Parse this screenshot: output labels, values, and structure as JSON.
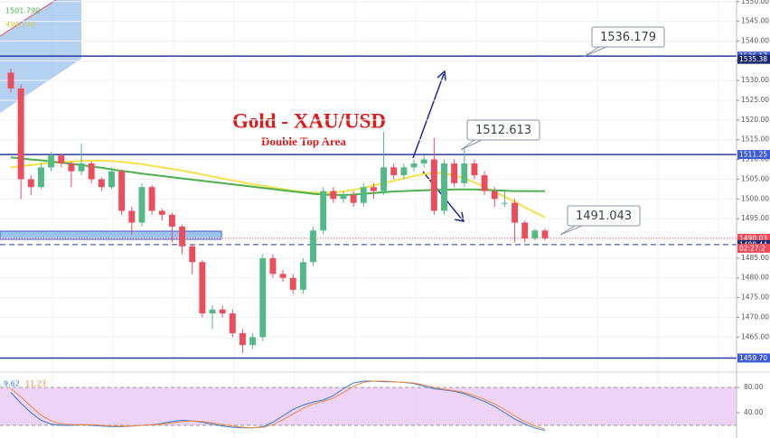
{
  "chart_data": {
    "type": "candlestick",
    "title": "Gold - XAU/USD",
    "subtitle": "Double Top Area",
    "overlay_labels": [
      "1501.790",
      "494.750"
    ],
    "up_color": "#53b987",
    "down_color": "#eb4d5c",
    "open": [
      1532,
      1528,
      1505,
      1503,
      1508,
      1511,
      1509,
      1507,
      1509,
      1505,
      1503,
      1507,
      1497,
      1494,
      1503,
      1497,
      1496,
      1493,
      1488,
      1484,
      1471,
      1472,
      1471,
      1466,
      1463,
      1465,
      1485,
      1481,
      1480,
      1477,
      1484,
      1492,
      1502,
      1500,
      1501,
      1499,
      1503,
      1502,
      1508,
      1506,
      1508,
      1509,
      1510,
      1497,
      1509,
      1504,
      1509,
      1506,
      1502,
      1499,
      1499,
      1494,
      1490,
      1492
    ],
    "high": [
      1533,
      1529,
      1506,
      1509,
      1512,
      1511.5,
      1509.5,
      1514,
      1509.5,
      1505.5,
      1508,
      1507.5,
      1498,
      1504,
      1503.5,
      1497.5,
      1496.5,
      1493.5,
      1488.5,
      1484.5,
      1473,
      1473,
      1472,
      1467,
      1466,
      1486,
      1486,
      1482,
      1481,
      1485,
      1493,
      1503,
      1503,
      1502,
      1502,
      1504,
      1504,
      1517,
      1509,
      1509,
      1510,
      1511,
      1515.5,
      1510,
      1510,
      1512.6,
      1510,
      1507,
      1503,
      1502,
      1500,
      1494.5,
      1492.5,
      1492.5
    ],
    "low": [
      1527,
      1500,
      1501,
      1502.5,
      1507,
      1508,
      1503,
      1506,
      1504,
      1502,
      1502.5,
      1496,
      1491,
      1493,
      1496,
      1494.5,
      1489,
      1486,
      1481,
      1470,
      1467,
      1470,
      1465,
      1461,
      1462,
      1464,
      1480,
      1479,
      1476,
      1476,
      1483,
      1491,
      1499,
      1499,
      1498,
      1498,
      1500,
      1501,
      1505,
      1505,
      1507,
      1508,
      1496,
      1496,
      1503,
      1503,
      1505,
      1501,
      1498,
      1498,
      1489,
      1489,
      1489.5,
      1489.5
    ],
    "close": [
      1528,
      1505,
      1503,
      1508,
      1511,
      1509,
      1507,
      1509,
      1505,
      1503,
      1507,
      1497,
      1494,
      1503,
      1497,
      1496,
      1493,
      1488,
      1484,
      1471,
      1472,
      1471,
      1466,
      1463,
      1465,
      1485,
      1481,
      1480,
      1477,
      1484,
      1492,
      1502,
      1500,
      1501,
      1499,
      1503,
      1502,
      1508,
      1506,
      1508,
      1509,
      1510,
      1497,
      1509,
      1504,
      1509,
      1506,
      1502,
      1500,
      1499,
      1494,
      1490,
      1492,
      1490.03
    ],
    "moving_averages": [
      {
        "color": "#f5e14a",
        "values": [
          1508.0,
          1508.3,
          1508.6,
          1508.9,
          1509.1,
          1509.3,
          1509.5,
          1509.6,
          1509.7,
          1509.7,
          1509.6,
          1509.4,
          1509.1,
          1508.8,
          1508.4,
          1508.0,
          1507.6,
          1507.2,
          1506.7,
          1506.2,
          1505.7,
          1505.2,
          1504.7,
          1504.2,
          1503.7,
          1503.3,
          1502.9,
          1502.5,
          1502.1,
          1501.8,
          1501.6,
          1501.5,
          1501.6,
          1501.9,
          1502.3,
          1502.8,
          1503.4,
          1504.0,
          1504.6,
          1505.2,
          1505.8,
          1506.3,
          1506.6,
          1506.5,
          1506.0,
          1505.2,
          1504.2,
          1503.0,
          1501.8,
          1500.6,
          1499.3,
          1497.9,
          1496.6,
          1495.3
        ]
      },
      {
        "color": "#4caf50",
        "values": [
          1510.5,
          1510.3,
          1510.0,
          1509.8,
          1509.5,
          1509.2,
          1508.9,
          1508.6,
          1508.2,
          1507.9,
          1507.5,
          1507.1,
          1506.8,
          1506.4,
          1506.1,
          1505.8,
          1505.5,
          1505.2,
          1504.9,
          1504.6,
          1504.3,
          1504.0,
          1503.7,
          1503.4,
          1503.1,
          1502.8,
          1502.5,
          1502.2,
          1501.9,
          1501.6,
          1501.3,
          1501.1,
          1501.0,
          1501.0,
          1501.1,
          1501.3,
          1501.5,
          1501.7,
          1501.9,
          1502.0,
          1502.1,
          1502.2,
          1502.3,
          1502.3,
          1502.4,
          1502.4,
          1502.4,
          1502.3,
          1502.2,
          1502.1,
          1502.0,
          1502.0,
          1502.0,
          1502.0
        ]
      }
    ],
    "ylim": [
      1456.6,
      1550.4
    ],
    "yticks": [
      {
        "value": 1465,
        "label": "1465.00"
      },
      {
        "value": 1470,
        "label": "1470.00"
      },
      {
        "value": 1475,
        "label": "1475.00"
      },
      {
        "value": 1480,
        "label": "1480.00"
      },
      {
        "value": 1485,
        "label": "1485.00"
      },
      {
        "value": 1490,
        "label": "1490.00"
      },
      {
        "value": 1495,
        "label": "1495.00"
      },
      {
        "value": 1500,
        "label": "1500.00"
      },
      {
        "value": 1505,
        "label": "1505.00"
      },
      {
        "value": 1510,
        "label": "1510.00"
      },
      {
        "value": 1515,
        "label": "1515.00"
      },
      {
        "value": 1520,
        "label": "1520.00"
      },
      {
        "value": 1525,
        "label": "1525.00"
      },
      {
        "value": 1530,
        "label": "1530.00"
      },
      {
        "value": 1535,
        "label": "1535.00"
      },
      {
        "value": 1540,
        "label": "1540.00"
      },
      {
        "value": 1545,
        "label": "1545.00"
      },
      {
        "value": 1550,
        "label": "1550.00"
      }
    ],
    "grid": true,
    "levels": [
      {
        "value": 1536.179,
        "color": "#2b3a9a",
        "style": "solid"
      },
      {
        "value": 1511.25,
        "color": "#2b3a9a",
        "style": "solid"
      },
      {
        "value": 1459.7,
        "color": "#2b3a9a",
        "style": "solid"
      },
      {
        "value": 1488.44,
        "color": "#2b3a9a",
        "style": "dashed"
      },
      {
        "value": 1490.03,
        "color": "#eb4d5c",
        "style": "dotted"
      }
    ],
    "callouts": [
      1536.179,
      1512.613,
      1491.043
    ],
    "axis_markers": [
      {
        "value": 1536.17,
        "color": "#3f5bd0"
      },
      {
        "value": 1535.38,
        "color": "#1f2a6b"
      },
      {
        "value": 1511.25,
        "color": "#3f5bd0"
      },
      {
        "value": 1490.03,
        "color": "#eb4d5c"
      },
      {
        "value": 1488.44,
        "color": "#1f2a6b"
      },
      {
        "value": 1459.7,
        "label": "1459.70",
        "color": "#3f5bd0"
      }
    ],
    "countdown": "02:27:2",
    "oscillator": {
      "ylim": [
        0,
        100
      ],
      "yticks": [
        {
          "value": 80,
          "label": "80.00"
        },
        {
          "value": 40,
          "label": "40.00"
        }
      ],
      "band": [
        20,
        80
      ],
      "readouts": [
        9.62,
        11.23
      ],
      "series": [
        {
          "color": "#2f7de1",
          "values": [
            72,
            55,
            40,
            28,
            22,
            20,
            20,
            21,
            20,
            19,
            18,
            18,
            19,
            20,
            21,
            23,
            26,
            28,
            27,
            25,
            22,
            19,
            17,
            16,
            16,
            18,
            25,
            35,
            45,
            52,
            57,
            60,
            67,
            78,
            87,
            90,
            90,
            89,
            89,
            88,
            86,
            82,
            78,
            76,
            74,
            70,
            64,
            58,
            50,
            40,
            30,
            22,
            16,
            12
          ]
        },
        {
          "color": "#f08a3c",
          "values": [
            78,
            65,
            50,
            36,
            27,
            22,
            21,
            21,
            21,
            20,
            19,
            19,
            19,
            20,
            21,
            22,
            24,
            26,
            27,
            26,
            24,
            21,
            19,
            17,
            16,
            17,
            21,
            29,
            38,
            47,
            54,
            58,
            63,
            72,
            82,
            88,
            90,
            90,
            89,
            88,
            87,
            84,
            80,
            77,
            75,
            72,
            67,
            61,
            54,
            45,
            35,
            26,
            19,
            14
          ]
        }
      ]
    }
  }
}
